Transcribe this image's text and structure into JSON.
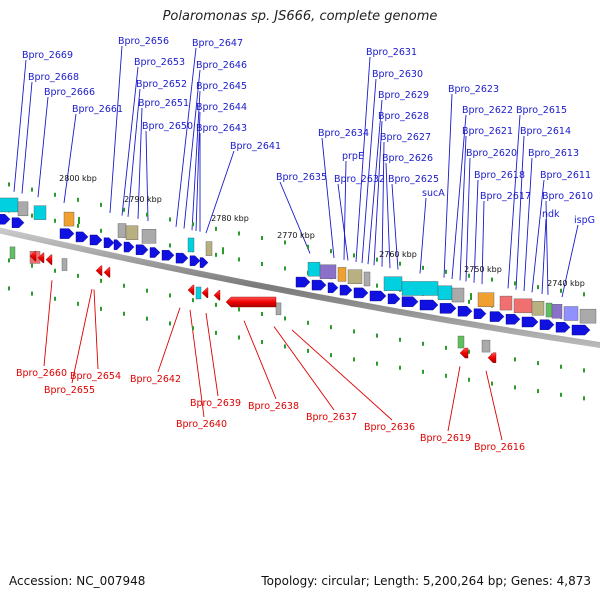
{
  "title": "Polaromonas sp. JS666, complete genome",
  "footer": {
    "accession": "Accession: NC_007948",
    "summary": "Topology: circular; Length: 5,200,264 bp; Genes: 4,873"
  },
  "colors": {
    "forward_label": "#1a1acc",
    "reverse_label": "#dd0000",
    "backbone": "#888888",
    "forward_gene": "#1010e0",
    "reverse_gene": "#ee0000",
    "tick": "#2a9a2a"
  },
  "ticks": [
    {
      "label": "2800 kbp"
    },
    {
      "label": "2790 kbp"
    },
    {
      "label": "2780 kbp"
    },
    {
      "label": "2770 kbp"
    },
    {
      "label": "2760 kbp"
    },
    {
      "label": "2750 kbp"
    },
    {
      "label": "2740 kbp"
    }
  ],
  "forward_labels": [
    "Bpro_2669",
    "Bpro_2668",
    "Bpro_2666",
    "Bpro_2661",
    "Bpro_2656",
    "Bpro_2653",
    "Bpro_2652",
    "Bpro_2651",
    "Bpro_2650",
    "Bpro_2647",
    "Bpro_2646",
    "Bpro_2645",
    "Bpro_2644",
    "Bpro_2643",
    "Bpro_2641",
    "Bpro_2635",
    "Bpro_2634",
    "prpE",
    "Bpro_2632",
    "Bpro_2631",
    "Bpro_2630",
    "Bpro_2629",
    "Bpro_2628",
    "Bpro_2627",
    "Bpro_2626",
    "Bpro_2625",
    "sucA",
    "Bpro_2623",
    "Bpro_2622",
    "Bpro_2621",
    "Bpro_2620",
    "Bpro_2618",
    "Bpro_2617",
    "Bpro_2615",
    "Bpro_2614",
    "Bpro_2613",
    "Bpro_2611",
    "ndk",
    "Bpro_2610",
    "ispG"
  ],
  "reverse_labels": [
    "Bpro_2660",
    "Bpro_2655",
    "Bpro_2654",
    "Bpro_2642",
    "Bpro_2640",
    "Bpro_2639",
    "Bpro_2638",
    "Bpro_2637",
    "Bpro_2636",
    "Bpro_2619",
    "Bpro_2616"
  ]
}
